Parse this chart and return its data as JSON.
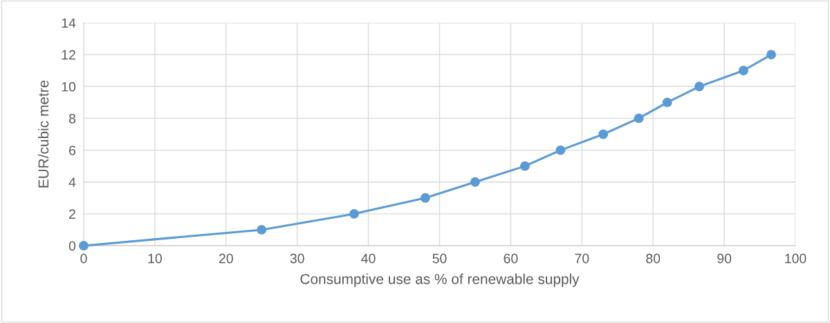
{
  "chart_data": {
    "type": "line",
    "xlabel": "Consumptive use as % of renewable supply",
    "ylabel": "EUR/cubic metre",
    "x": [
      0,
      25,
      38,
      48,
      55,
      62,
      67,
      73,
      78,
      82,
      86.5,
      92.7,
      96.6
    ],
    "series": [
      {
        "color": "#5b9bd5",
        "values": [
          0,
          1,
          2,
          3,
          4,
          5,
          6,
          7,
          8,
          9,
          10,
          11,
          12
        ]
      }
    ],
    "xlim": [
      0,
      100
    ],
    "xticks": [
      0,
      10,
      20,
      30,
      40,
      50,
      60,
      70,
      80,
      90,
      100
    ],
    "ylim": [
      0,
      14
    ],
    "yticks": [
      0,
      2,
      4,
      6,
      8,
      10,
      12,
      14
    ],
    "grid": true,
    "marker": "circle",
    "line_style": "solid",
    "legend": false
  }
}
